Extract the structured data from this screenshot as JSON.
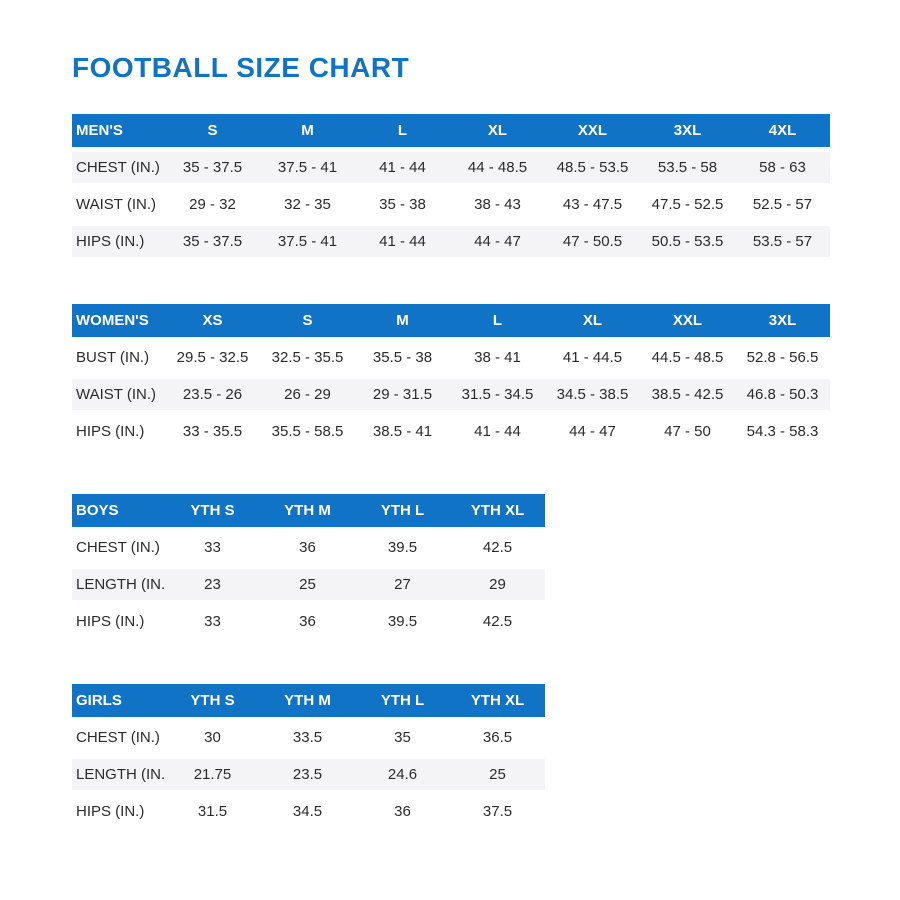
{
  "page": {
    "title": "FOOTBALL SIZE CHART"
  },
  "colors": {
    "accent": "#1173c5",
    "row_stripe": "#f4f4f6",
    "header_text": "#ffffff",
    "body_text": "#2b2b2b"
  },
  "tables": [
    {
      "name": "MEN'S",
      "stripe_pattern": "odd",
      "columns": [
        "S",
        "M",
        "L",
        "XL",
        "XXL",
        "3XL",
        "4XL"
      ],
      "rows": [
        {
          "label": "CHEST (IN.)",
          "values": [
            "35 - 37.5",
            "37.5 - 41",
            "41 - 44",
            "44 - 48.5",
            "48.5 - 53.5",
            "53.5 - 58",
            "58 - 63"
          ]
        },
        {
          "label": "WAIST (IN.)",
          "values": [
            "29 - 32",
            "32 - 35",
            "35 - 38",
            "38 - 43",
            "43 - 47.5",
            "47.5 - 52.5",
            "52.5 - 57"
          ]
        },
        {
          "label": "HIPS (IN.)",
          "values": [
            "35 - 37.5",
            "37.5 - 41",
            "41 - 44",
            "44 - 47",
            "47 - 50.5",
            "50.5 - 53.5",
            "53.5 - 57"
          ]
        }
      ]
    },
    {
      "name": "WOMEN'S",
      "stripe_pattern": "even",
      "columns": [
        "XS",
        "S",
        "M",
        "L",
        "XL",
        "XXL",
        "3XL"
      ],
      "rows": [
        {
          "label": "BUST (IN.)",
          "values": [
            "29.5 - 32.5",
            "32.5 - 35.5",
            "35.5 - 38",
            "38 - 41",
            "41 - 44.5",
            "44.5 - 48.5",
            "52.8 - 56.5"
          ]
        },
        {
          "label": "WAIST (IN.)",
          "values": [
            "23.5 - 26",
            "26 - 29",
            "29 - 31.5",
            "31.5 - 34.5",
            "34.5 - 38.5",
            "38.5 - 42.5",
            "46.8 - 50.3"
          ]
        },
        {
          "label": "HIPS (IN.)",
          "values": [
            "33 - 35.5",
            "35.5 - 58.5",
            "38.5 - 41",
            "41 - 44",
            "44 - 47",
            "47 - 50",
            "54.3 - 58.3"
          ]
        }
      ]
    },
    {
      "name": "BOYS",
      "stripe_pattern": "even",
      "columns": [
        "YTH S",
        "YTH M",
        "YTH L",
        "YTH XL"
      ],
      "rows": [
        {
          "label": "CHEST (IN.)",
          "values": [
            "33",
            "36",
            "39.5",
            "42.5"
          ]
        },
        {
          "label": "LENGTH (IN.)",
          "values": [
            "23",
            "25",
            "27",
            "29"
          ]
        },
        {
          "label": "HIPS (IN.)",
          "values": [
            "33",
            "36",
            "39.5",
            "42.5"
          ]
        }
      ]
    },
    {
      "name": "GIRLS",
      "stripe_pattern": "even",
      "columns": [
        "YTH S",
        "YTH M",
        "YTH L",
        "YTH XL"
      ],
      "rows": [
        {
          "label": "CHEST (IN.)",
          "values": [
            "30",
            "33.5",
            "35",
            "36.5"
          ]
        },
        {
          "label": "LENGTH (IN.)",
          "values": [
            "21.75",
            "23.5",
            "24.6",
            "25"
          ]
        },
        {
          "label": "HIPS (IN.)",
          "values": [
            "31.5",
            "34.5",
            "36",
            "37.5"
          ]
        }
      ]
    }
  ]
}
